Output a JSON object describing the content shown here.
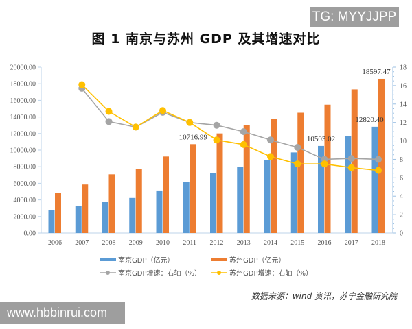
{
  "watermark_top": "TG: MYYJJPP",
  "watermark_bottom": "www.hbbinrui.com",
  "source": "数据来源：wind 资讯，苏宁金融研究院",
  "chart_data": {
    "type": "bar+line",
    "title": "图 1    南京与苏州 GDP 及其增速对比",
    "categories": [
      "2006",
      "2007",
      "2008",
      "2009",
      "2010",
      "2011",
      "2012",
      "2013",
      "2014",
      "2015",
      "2016",
      "2017",
      "2018"
    ],
    "left_axis": {
      "ylim": [
        0,
        20000
      ],
      "ticks": [
        "0.00",
        "2000.00",
        "4000.00",
        "6000.00",
        "8000.00",
        "10000.00",
        "12000.00",
        "14000.00",
        "16000.00",
        "18000.00",
        "20000.00"
      ]
    },
    "right_axis": {
      "ylim": [
        0,
        18
      ],
      "ticks": [
        "0",
        "2",
        "4",
        "6",
        "8",
        "10",
        "12",
        "14",
        "16",
        "18"
      ]
    },
    "grid": false,
    "legend_position": "bottom",
    "series": [
      {
        "name": "南京GDP（亿元）",
        "type": "bar",
        "axis": "left",
        "color": "#5b9bd5",
        "values": [
          2770,
          3280,
          3780,
          4230,
          5130,
          6150,
          7200,
          8010,
          8820,
          9720,
          10503.02,
          11715,
          12820.4
        ]
      },
      {
        "name": "苏州GDP（亿元）",
        "type": "bar",
        "axis": "left",
        "color": "#ed7d31",
        "values": [
          4820,
          5850,
          7080,
          7740,
          9230,
          10716.99,
          12012,
          13016,
          13761,
          14504,
          15475,
          17320,
          18597.47
        ]
      },
      {
        "name": "南京GDP增速：右轴（%）",
        "type": "line",
        "axis": "right",
        "color": "#a5a5a5",
        "values": [
          null,
          15.7,
          12.1,
          11.5,
          13.1,
          12.0,
          11.7,
          11.0,
          10.1,
          9.3,
          8.0,
          8.1,
          8.0
        ]
      },
      {
        "name": "苏州GDP增速：右轴（%）",
        "type": "line",
        "axis": "right",
        "color": "#ffc000",
        "values": [
          null,
          16.1,
          13.2,
          11.5,
          13.3,
          12.0,
          10.1,
          9.6,
          8.3,
          7.5,
          7.5,
          7.1,
          6.8
        ]
      }
    ],
    "data_labels": [
      {
        "series": 1,
        "index": 5,
        "text": "10716.99"
      },
      {
        "series": 0,
        "index": 10,
        "text": "10503.02"
      },
      {
        "series": 0,
        "index": 12,
        "text": "12820.40"
      },
      {
        "series": 1,
        "index": 12,
        "text": "18597.47"
      }
    ]
  }
}
